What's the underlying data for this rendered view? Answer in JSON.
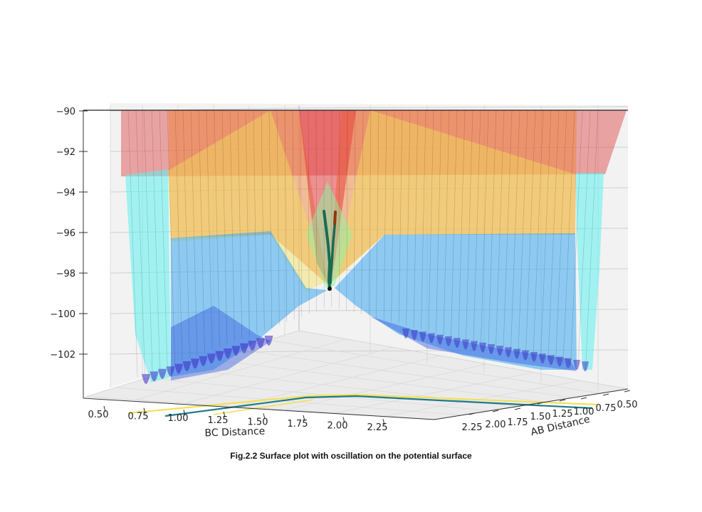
{
  "caption": "Fig.2.2 Surface plot with oscillation on the potential surface",
  "chart_data": {
    "type": "surface3d",
    "title": "",
    "xlabel": "BC Distance",
    "ylabel": "AB Distance",
    "zlabel": "",
    "xlim": [
      0.5,
      2.25
    ],
    "ylim": [
      0.5,
      2.25
    ],
    "zlim": [
      -103,
      -90
    ],
    "x_ticks": [
      "0.50",
      "0.75",
      "1.00",
      "1.25",
      "1.50",
      "1.75",
      "2.00",
      "2.25"
    ],
    "y_ticks": [
      "0.50",
      "0.75",
      "1.00",
      "1.25",
      "1.50",
      "1.75",
      "2.00",
      "2.25"
    ],
    "z_ticks": [
      "−90",
      "−92",
      "−94",
      "−96",
      "−98",
      "−100",
      "−102"
    ],
    "z_tick_values": [
      -90,
      -92,
      -94,
      -96,
      -98,
      -100,
      -102
    ],
    "colormap": "jet",
    "surface_alpha": 0.5,
    "grid": true,
    "series": [
      {
        "name": "",
        "kind": "trajectory",
        "color": "#1a6b52",
        "note": "oscillation path near the saddle point"
      },
      {
        "name": "",
        "kind": "trajectory",
        "color": "#8b3a0e"
      },
      {
        "name": "",
        "kind": "projection",
        "color": "#e8d21c"
      },
      {
        "name": "",
        "kind": "projection",
        "color": "#1e7a8a"
      }
    ],
    "surface_colors": {
      "top": "#e06060",
      "orange": "#f0843a",
      "yellow": "#f2e05a",
      "green": "#8ef5a0",
      "cyan": "#5ff0f0",
      "blue": "#3aa8f0",
      "purple": "#3a2cc4"
    }
  }
}
